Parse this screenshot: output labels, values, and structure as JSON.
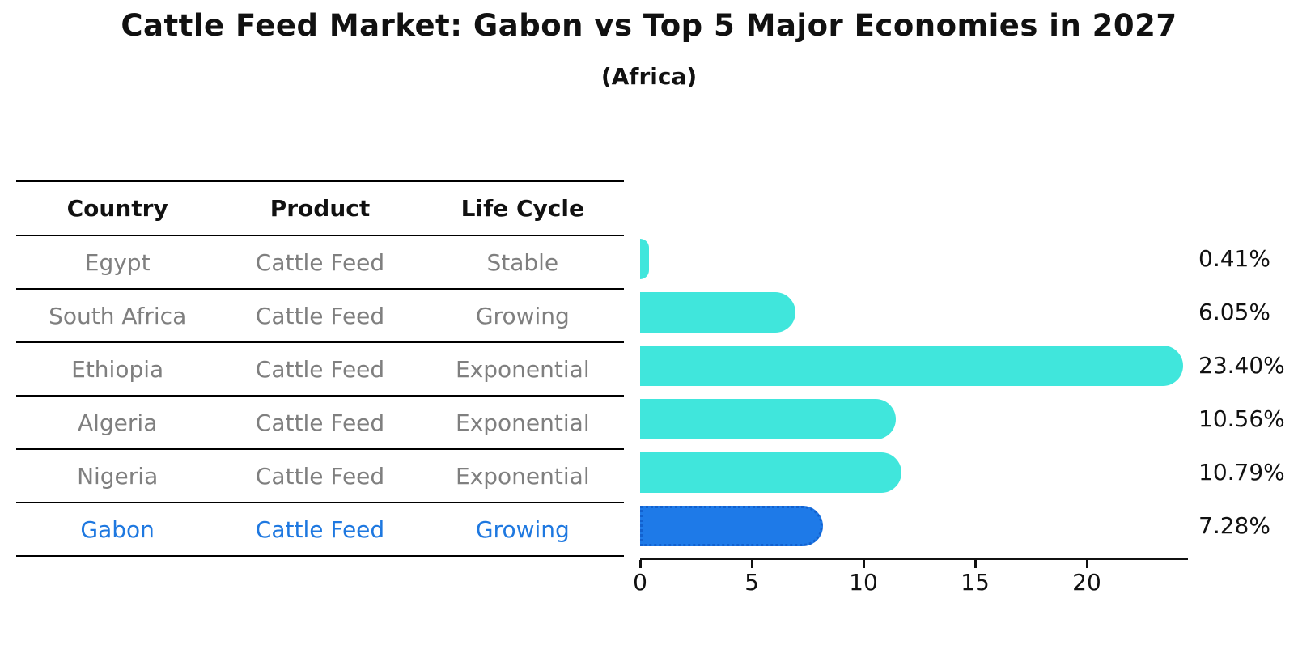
{
  "chart": {
    "title": "Cattle Feed Market: Gabon vs Top 5 Major Economies in 2027",
    "subtitle": "(Africa)"
  },
  "table": {
    "headers": [
      "Country",
      "Product",
      "Life Cycle"
    ],
    "rows": [
      {
        "country": "Egypt",
        "product": "Cattle Feed",
        "life_cycle": "Stable",
        "highlight": false
      },
      {
        "country": "South Africa",
        "product": "Cattle Feed",
        "life_cycle": "Growing",
        "highlight": false
      },
      {
        "country": "Ethiopia",
        "product": "Cattle Feed",
        "life_cycle": "Exponential",
        "highlight": false
      },
      {
        "country": "Algeria",
        "product": "Cattle Feed",
        "life_cycle": "Exponential",
        "highlight": false
      },
      {
        "country": "Nigeria",
        "product": "Cattle Feed",
        "life_cycle": "Exponential",
        "highlight": false
      },
      {
        "country": "Gabon",
        "product": "Cattle Feed",
        "life_cycle": "Growing",
        "highlight": true
      }
    ]
  },
  "chart_data": {
    "type": "bar",
    "orientation": "horizontal",
    "title": "Cattle Feed Market: Gabon vs Top 5 Major Economies in 2027",
    "subtitle": "(Africa)",
    "categories": [
      "Egypt",
      "South Africa",
      "Ethiopia",
      "Algeria",
      "Nigeria",
      "Gabon"
    ],
    "values": [
      0.41,
      6.05,
      23.4,
      10.56,
      10.79,
      7.28
    ],
    "value_labels": [
      "0.41%",
      "6.05%",
      "23.40%",
      "10.56%",
      "10.79%",
      "7.28%"
    ],
    "highlight_index": 5,
    "x_ticks": [
      0,
      5,
      10,
      15,
      20
    ],
    "xlim": [
      0,
      24.5
    ],
    "grid": false,
    "legend_position": "none",
    "bar_color": "#40e6dc",
    "highlight_color": "#1e7ae8"
  },
  "colors": {
    "bar": "#40e6dc",
    "highlight_bar": "#1e7ae8",
    "highlight_text": "#1e78e0",
    "table_text": "#7f7f7f",
    "header_text": "#111111",
    "axis": "#111111"
  }
}
